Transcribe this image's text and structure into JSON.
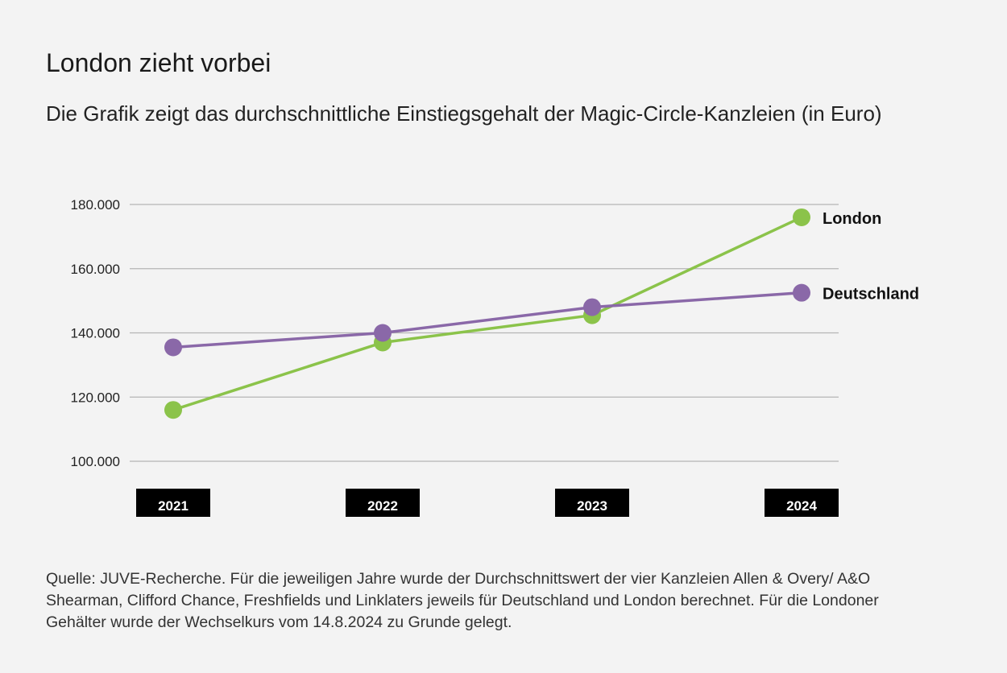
{
  "title": "London zieht vorbei",
  "subtitle": "Die Grafik zeigt das durchschnittliche Einstiegsgehalt der Magic-Circle-Kanzleien (in Euro)",
  "source": "Quelle: JUVE-Recherche. Für die jeweiligen Jahre wurde der Durchschnittswert der vier Kanzleien Allen & Overy/ A&O Shearman, Clifford Chance, Freshfields und Linklaters jeweils für Deutschland und London berechnet. Für die Londoner Gehälter wurde der Wechselkurs vom 14.8.2024 zu Grunde gelegt.",
  "chart_data": {
    "type": "line",
    "x": [
      "2021",
      "2022",
      "2023",
      "2024"
    ],
    "ylim": [
      100000,
      180000
    ],
    "yticks": [
      100000,
      120000,
      140000,
      160000,
      180000
    ],
    "ytick_labels": [
      "100.000",
      "120.000",
      "140.000",
      "160.000",
      "180.000"
    ],
    "grid": true,
    "series": [
      {
        "name": "London",
        "color": "#8bc34a",
        "values": [
          116000,
          137000,
          145500,
          176000
        ]
      },
      {
        "name": "Deutschland",
        "color": "#8a68a8",
        "values": [
          135500,
          140000,
          148000,
          152500
        ]
      }
    ]
  }
}
